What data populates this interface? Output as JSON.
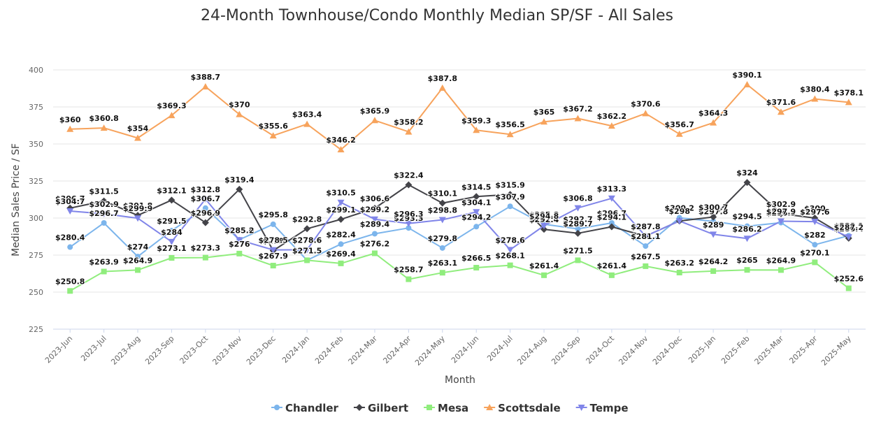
{
  "chart_data": {
    "type": "line",
    "title": "24-Month Townhouse/Condo Monthly Median SP/SF - All Sales",
    "xlabel": "Month",
    "ylabel": "Median Sales Price / SF",
    "ylim": [
      225,
      400
    ],
    "yticks": [
      225,
      250,
      275,
      300,
      325,
      350,
      375,
      400
    ],
    "grid": true,
    "legend_position": "bottom-center",
    "categories": [
      "2023-Jun",
      "2023-Jul",
      "2023-Aug",
      "2023-Sep",
      "2023-Oct",
      "2023-Nov",
      "2023-Dec",
      "2024-Jan",
      "2024-Feb",
      "2024-Mar",
      "2024-Apr",
      "2024-May",
      "2024-Jun",
      "2024-Jul",
      "2024-Aug",
      "2024-Sep",
      "2024-Oct",
      "2024-Nov",
      "2024-Dec",
      "2025-Jan",
      "2025-Feb",
      "2025-Mar",
      "2025-Apr",
      "2025-May"
    ],
    "series": [
      {
        "name": "Chandler",
        "color": "#7cb5ec",
        "marker": "circle",
        "values": [
          280.4,
          296.7,
          274,
          291.5,
          306.7,
          285.4,
          295.8,
          271.5,
          282.4,
          289.4,
          293.3,
          279.8,
          294.2,
          307.9,
          295.8,
          292.7,
          296.7,
          281.1,
          300.2,
          297.8,
          294.5,
          296.9,
          282,
          288.1
        ]
      },
      {
        "name": "Gilbert",
        "color": "#434348",
        "marker": "diamond",
        "values": [
          306.7,
          311.5,
          301.8,
          312.1,
          296.9,
          319.4,
          278,
          292.8,
          299.1,
          306.6,
          322.4,
          310.1,
          314.5,
          315.9,
          292.4,
          289.7,
          294.1,
          287.8,
          298,
          300.7,
          324,
          302.9,
          300,
          286.4
        ]
      },
      {
        "name": "Mesa",
        "color": "#90ed7d",
        "marker": "square",
        "values": [
          250.8,
          263.9,
          264.9,
          273.1,
          273.3,
          276,
          267.9,
          271.5,
          269.4,
          276.2,
          258.7,
          263.1,
          266.5,
          268.1,
          261.4,
          271.5,
          261.4,
          267.5,
          263.2,
          264.2,
          265,
          264.9,
          270.1,
          252.6
        ]
      },
      {
        "name": "Scottsdale",
        "color": "#f7a35c",
        "marker": "triangle",
        "values": [
          360,
          360.8,
          354,
          369.3,
          388.7,
          370,
          355.6,
          363.4,
          346.2,
          365.9,
          358.2,
          387.8,
          359.3,
          356.5,
          365,
          367.2,
          362.2,
          370.6,
          356.7,
          364.3,
          390.1,
          371.6,
          380.4,
          378.1
        ]
      },
      {
        "name": "Tempe",
        "color": "#8085e9",
        "marker": "triangle-down",
        "values": [
          304.7,
          302.9,
          299.9,
          284,
          312.8,
          285.2,
          278.5,
          278.6,
          310.5,
          299.2,
          296.3,
          298.8,
          304.1,
          278.6,
          294.8,
          306.8,
          313.3,
          287.8,
          298,
          289,
          286.2,
          297.9,
          297.6,
          287.2
        ]
      }
    ]
  }
}
